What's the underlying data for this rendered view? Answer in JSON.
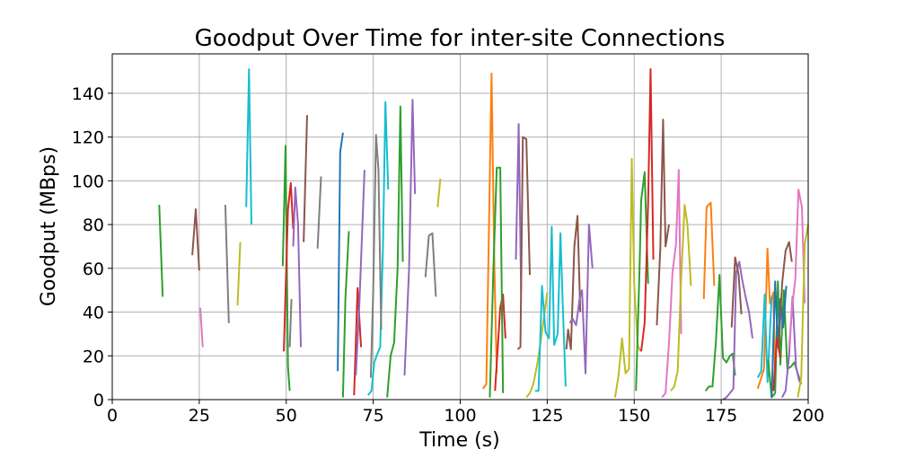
{
  "chart_data": {
    "type": "line",
    "title": "Goodput Over Time for inter-site Connections",
    "xlabel": "Time (s)",
    "ylabel": "Goodput (MBps)",
    "xlim": [
      0,
      200
    ],
    "ylim": [
      0,
      158
    ],
    "xticks": [
      0,
      25,
      50,
      75,
      100,
      125,
      150,
      175,
      200
    ],
    "yticks": [
      0,
      20,
      40,
      60,
      80,
      100,
      120,
      140
    ],
    "grid": true,
    "legend": "none",
    "palette": [
      "#1f77b4",
      "#ff7f0e",
      "#2ca02c",
      "#d62728",
      "#9467bd",
      "#8c564b",
      "#e377c2",
      "#7f7f7f",
      "#bcbd22",
      "#17becf"
    ],
    "series": [
      {
        "color": "#2ca02c",
        "points": [
          [
            13.5,
            89
          ],
          [
            14.5,
            47
          ]
        ]
      },
      {
        "color": "#8c564b",
        "points": [
          [
            23,
            66
          ],
          [
            24,
            87
          ],
          [
            25,
            59
          ]
        ]
      },
      {
        "color": "#e377c2",
        "points": [
          [
            25.3,
            42
          ],
          [
            26,
            24
          ]
        ]
      },
      {
        "color": "#7f7f7f",
        "points": [
          [
            32.5,
            89
          ],
          [
            33.5,
            35
          ]
        ]
      },
      {
        "color": "#bcbd22",
        "points": [
          [
            36,
            43
          ],
          [
            36.8,
            72
          ]
        ]
      },
      {
        "color": "#17becf",
        "points": [
          [
            38.5,
            88
          ],
          [
            39.3,
            151
          ],
          [
            40,
            80
          ]
        ]
      },
      {
        "color": "#2ca02c",
        "points": [
          [
            49,
            61
          ],
          [
            49.8,
            116
          ],
          [
            50.5,
            15
          ],
          [
            51,
            4
          ]
        ]
      },
      {
        "color": "#d62728",
        "points": [
          [
            49.3,
            22
          ],
          [
            50.5,
            87
          ],
          [
            51.3,
            99
          ],
          [
            52,
            78
          ]
        ]
      },
      {
        "color": "#7f7f7f",
        "points": [
          [
            51,
            24
          ],
          [
            51.5,
            46
          ]
        ]
      },
      {
        "color": "#9467bd",
        "points": [
          [
            52,
            70
          ],
          [
            52.6,
            97
          ],
          [
            53.4,
            80
          ],
          [
            54.2,
            24
          ]
        ]
      },
      {
        "color": "#8c564b",
        "points": [
          [
            55,
            72
          ],
          [
            56,
            130
          ]
        ]
      },
      {
        "color": "#7f7f7f",
        "points": [
          [
            59,
            69
          ],
          [
            60,
            102
          ]
        ]
      },
      {
        "color": "#1f77b4",
        "points": [
          [
            64.8,
            13
          ],
          [
            65.5,
            113
          ],
          [
            66.3,
            122
          ]
        ]
      },
      {
        "color": "#2ca02c",
        "points": [
          [
            66.3,
            1
          ],
          [
            67,
            46
          ],
          [
            68,
            77
          ]
        ]
      },
      {
        "color": "#d62728",
        "points": [
          [
            69.5,
            2
          ],
          [
            70.5,
            51
          ],
          [
            71.5,
            24
          ]
        ]
      },
      {
        "color": "#9467bd",
        "points": [
          [
            70,
            11
          ],
          [
            71,
            43
          ],
          [
            72.5,
            105
          ]
        ]
      },
      {
        "color": "#17becf",
        "points": [
          [
            73.5,
            2
          ],
          [
            74.5,
            4
          ],
          [
            75.3,
            17
          ],
          [
            76.2,
            21
          ],
          [
            77,
            24
          ],
          [
            77.8,
            70
          ],
          [
            78.5,
            136
          ],
          [
            79.3,
            96
          ]
        ]
      },
      {
        "color": "#7f7f7f",
        "points": [
          [
            74.3,
            10
          ],
          [
            75,
            50
          ],
          [
            75.8,
            121
          ],
          [
            76.5,
            105
          ],
          [
            77.3,
            32
          ]
        ]
      },
      {
        "color": "#2ca02c",
        "points": [
          [
            79,
            1
          ],
          [
            80,
            20
          ],
          [
            81,
            26
          ],
          [
            82,
            60
          ],
          [
            82.8,
            134
          ],
          [
            83.5,
            63
          ]
        ]
      },
      {
        "color": "#9467bd",
        "points": [
          [
            84,
            11
          ],
          [
            85.3,
            60
          ],
          [
            86.3,
            137
          ],
          [
            87,
            94
          ]
        ]
      },
      {
        "color": "#7f7f7f",
        "points": [
          [
            90,
            56
          ],
          [
            91,
            75
          ],
          [
            92,
            76
          ],
          [
            93,
            47
          ]
        ]
      },
      {
        "color": "#bcbd22",
        "points": [
          [
            93.5,
            88
          ],
          [
            94.3,
            101
          ]
        ]
      },
      {
        "color": "#ff7f0e",
        "points": [
          [
            106.5,
            5
          ],
          [
            107.5,
            7
          ],
          [
            108.3,
            82
          ],
          [
            109,
            149
          ],
          [
            109.8,
            62
          ],
          [
            110.5,
            12
          ]
        ]
      },
      {
        "color": "#d62728",
        "points": [
          [
            110,
            4
          ],
          [
            110.8,
            24
          ],
          [
            111.5,
            42
          ],
          [
            112.3,
            48
          ],
          [
            113,
            28
          ]
        ]
      },
      {
        "color": "#2ca02c",
        "points": [
          [
            108.5,
            1
          ],
          [
            109.5,
            58
          ],
          [
            110.5,
            106
          ],
          [
            111.5,
            106
          ],
          [
            112.3,
            3
          ]
        ]
      },
      {
        "color": "#9467bd",
        "points": [
          [
            116,
            64
          ],
          [
            116.8,
            126
          ],
          [
            117.5,
            49
          ]
        ]
      },
      {
        "color": "#8c564b",
        "points": [
          [
            116.5,
            23
          ],
          [
            117.3,
            24
          ],
          [
            118,
            120
          ],
          [
            119,
            119
          ],
          [
            120,
            57
          ]
        ]
      },
      {
        "color": "#bcbd22",
        "points": [
          [
            119,
            1
          ],
          [
            120,
            3
          ],
          [
            121,
            7
          ],
          [
            122,
            15
          ],
          [
            123,
            25
          ],
          [
            124,
            37
          ],
          [
            125,
            49
          ]
        ]
      },
      {
        "color": "#17becf",
        "points": [
          [
            121.5,
            4
          ],
          [
            122.5,
            4
          ],
          [
            123.5,
            52
          ],
          [
            124.5,
            31
          ],
          [
            125.5,
            28
          ],
          [
            126.3,
            79
          ],
          [
            127,
            25
          ],
          [
            128,
            30
          ],
          [
            128.8,
            76
          ],
          [
            129.5,
            42
          ],
          [
            130.3,
            6
          ]
        ]
      },
      {
        "color": "#8c564b",
        "points": [
          [
            130.5,
            23
          ],
          [
            131,
            32
          ],
          [
            131.8,
            23
          ],
          [
            132.8,
            70
          ],
          [
            133.7,
            84
          ],
          [
            134.5,
            40
          ]
        ]
      },
      {
        "color": "#9467bd",
        "points": [
          [
            131.5,
            35
          ],
          [
            132.3,
            37
          ],
          [
            133.3,
            34
          ],
          [
            134.3,
            46
          ],
          [
            135,
            50
          ],
          [
            136,
            12
          ],
          [
            137,
            80
          ],
          [
            138,
            60
          ]
        ]
      },
      {
        "color": "#bcbd22",
        "points": [
          [
            144.5,
            1
          ],
          [
            145.5,
            11
          ],
          [
            146.5,
            28
          ],
          [
            147.5,
            12
          ],
          [
            148.5,
            14
          ],
          [
            149.3,
            110
          ],
          [
            150,
            53
          ],
          [
            151,
            25
          ],
          [
            151.8,
            22
          ]
        ]
      },
      {
        "color": "#2ca02c",
        "points": [
          [
            150.5,
            4
          ],
          [
            151.5,
            58
          ],
          [
            152,
            91
          ],
          [
            153,
            104
          ],
          [
            154,
            53
          ]
        ]
      },
      {
        "color": "#d62728",
        "points": [
          [
            152,
            22
          ],
          [
            153,
            35
          ],
          [
            154,
            90
          ],
          [
            154.7,
            151
          ],
          [
            155.5,
            64
          ]
        ]
      },
      {
        "color": "#8c564b",
        "points": [
          [
            156.5,
            34
          ],
          [
            157.5,
            69
          ],
          [
            158.3,
            128
          ],
          [
            159,
            70
          ],
          [
            160,
            80
          ]
        ]
      },
      {
        "color": "#e377c2",
        "points": [
          [
            158,
            1
          ],
          [
            159,
            3
          ],
          [
            160,
            26
          ],
          [
            161,
            58
          ],
          [
            162,
            71
          ],
          [
            162.8,
            105
          ],
          [
            163.5,
            30
          ]
        ]
      },
      {
        "color": "#bcbd22",
        "points": [
          [
            160.5,
            4
          ],
          [
            161.5,
            6
          ],
          [
            162.5,
            13
          ],
          [
            163.5,
            56
          ],
          [
            164.5,
            89
          ],
          [
            165.3,
            80
          ],
          [
            166.3,
            52
          ]
        ]
      },
      {
        "color": "#ff7f0e",
        "points": [
          [
            170,
            46
          ],
          [
            170.8,
            88
          ],
          [
            172,
            90
          ],
          [
            173,
            52
          ]
        ]
      },
      {
        "color": "#2ca02c",
        "points": [
          [
            170.5,
            4
          ],
          [
            171.5,
            6
          ],
          [
            172.5,
            6
          ],
          [
            173.5,
            27
          ],
          [
            174.5,
            57
          ],
          [
            175.5,
            19
          ],
          [
            176.5,
            17
          ],
          [
            177.5,
            20
          ],
          [
            178.3,
            21
          ],
          [
            179,
            11
          ]
        ]
      },
      {
        "color": "#9467bd",
        "points": [
          [
            175.5,
            0
          ],
          [
            176.5,
            1
          ],
          [
            177.5,
            3
          ],
          [
            178.5,
            5
          ],
          [
            179.3,
            58
          ],
          [
            180.2,
            63
          ],
          [
            181,
            55
          ],
          [
            182,
            47
          ],
          [
            183,
            40
          ],
          [
            184,
            28
          ]
        ]
      },
      {
        "color": "#8c564b",
        "points": [
          [
            178,
            33
          ],
          [
            179,
            65
          ],
          [
            180,
            57
          ],
          [
            180.8,
            39
          ]
        ]
      },
      {
        "color": "#ff7f0e",
        "points": [
          [
            185.5,
            5
          ],
          [
            186.5,
            10
          ],
          [
            187.3,
            14
          ],
          [
            188.3,
            69
          ],
          [
            189,
            44
          ],
          [
            190,
            49
          ],
          [
            190.5,
            10
          ]
        ]
      },
      {
        "color": "#17becf",
        "points": [
          [
            185.5,
            10
          ],
          [
            186.5,
            13
          ],
          [
            187.5,
            48
          ],
          [
            188.3,
            8
          ],
          [
            189.5,
            47
          ]
        ]
      },
      {
        "color": "#2ca02c",
        "points": [
          [
            188.5,
            18
          ],
          [
            189.5,
            1
          ],
          [
            190.5,
            3
          ],
          [
            191.3,
            54
          ],
          [
            192,
            16
          ],
          [
            193,
            50
          ],
          [
            194,
            14
          ],
          [
            195,
            15
          ],
          [
            196,
            17
          ],
          [
            197,
            12
          ],
          [
            198,
            7
          ]
        ]
      },
      {
        "color": "#1f77b4",
        "points": [
          [
            189.5,
            1
          ],
          [
            190.5,
            54
          ],
          [
            191.3,
            24
          ],
          [
            192,
            46
          ],
          [
            192.8,
            33
          ],
          [
            193.7,
            52
          ]
        ]
      },
      {
        "color": "#d62728",
        "points": [
          [
            190,
            4
          ],
          [
            191,
            28
          ],
          [
            192,
            19
          ]
        ]
      },
      {
        "color": "#8c564b",
        "points": [
          [
            191.5,
            23
          ],
          [
            192.5,
            53
          ],
          [
            193.5,
            68
          ],
          [
            194.5,
            72
          ],
          [
            195.3,
            63
          ]
        ]
      },
      {
        "color": "#9467bd",
        "points": [
          [
            192.5,
            1
          ],
          [
            193.5,
            4
          ],
          [
            194.5,
            20
          ],
          [
            195.5,
            47
          ],
          [
            196.5,
            15
          ],
          [
            197.5,
            8
          ]
        ]
      },
      {
        "color": "#e377c2",
        "points": [
          [
            194.5,
            24
          ],
          [
            195.5,
            44
          ],
          [
            196.3,
            55
          ],
          [
            197.2,
            96
          ],
          [
            198.2,
            88
          ],
          [
            199,
            44
          ]
        ]
      },
      {
        "color": "#bcbd22",
        "points": [
          [
            197,
            1
          ],
          [
            198,
            10
          ],
          [
            199,
            71
          ],
          [
            200,
            80
          ]
        ]
      }
    ]
  }
}
